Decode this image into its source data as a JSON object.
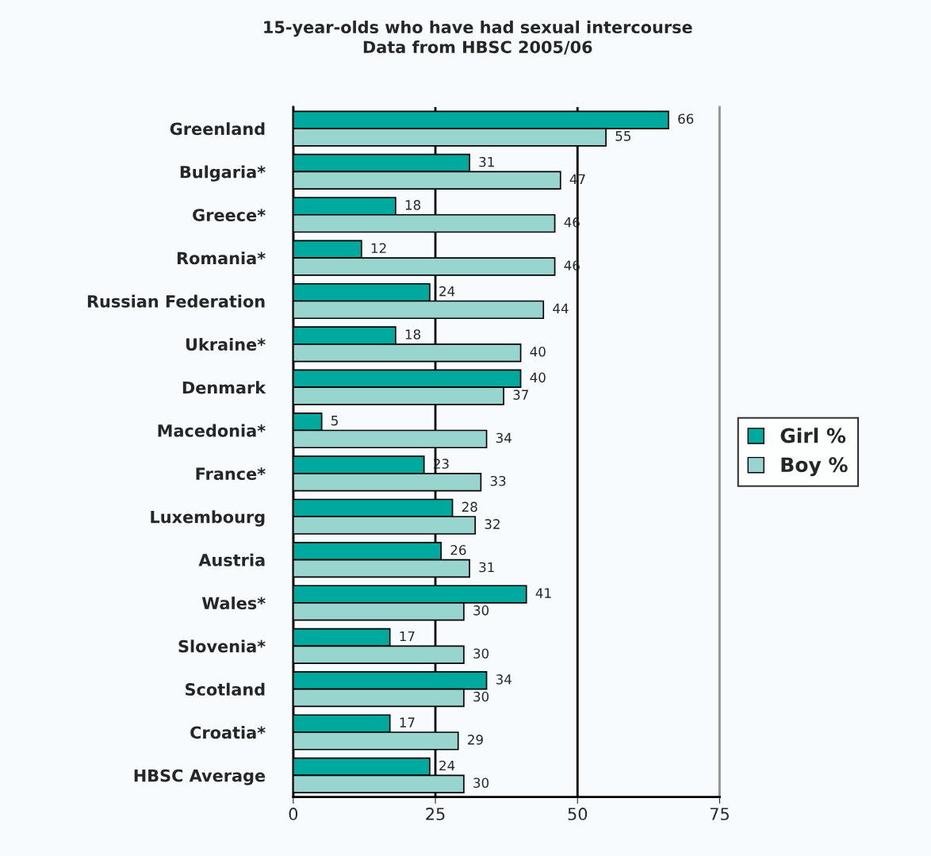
{
  "chart_data": {
    "type": "bar",
    "orientation": "horizontal",
    "title": "15-year-olds who have had sexual intercourse\nData from HBSC 2005/06",
    "categories": [
      "Greenland",
      "Bulgaria*",
      "Greece*",
      "Romania*",
      "Russian Federation",
      "Ukraine*",
      "Denmark",
      "Macedonia*",
      "France*",
      "Luxembourg",
      "Austria",
      "Wales*",
      "Slovenia*",
      "Scotland",
      "Croatia*",
      "HBSC Average"
    ],
    "series": [
      {
        "name": "Girl %",
        "color": "#00a99d",
        "values": [
          66,
          31,
          18,
          12,
          24,
          18,
          40,
          5,
          23,
          28,
          26,
          41,
          17,
          34,
          17,
          24
        ]
      },
      {
        "name": "Boy %",
        "color": "#99d5cf",
        "values": [
          55,
          47,
          46,
          46,
          44,
          40,
          37,
          34,
          33,
          32,
          31,
          30,
          30,
          30,
          29,
          30
        ]
      }
    ],
    "xlim": [
      0,
      75
    ],
    "xticks": [
      0,
      25,
      50,
      75
    ],
    "grid": "x",
    "legend": "right",
    "data_labels": true
  }
}
